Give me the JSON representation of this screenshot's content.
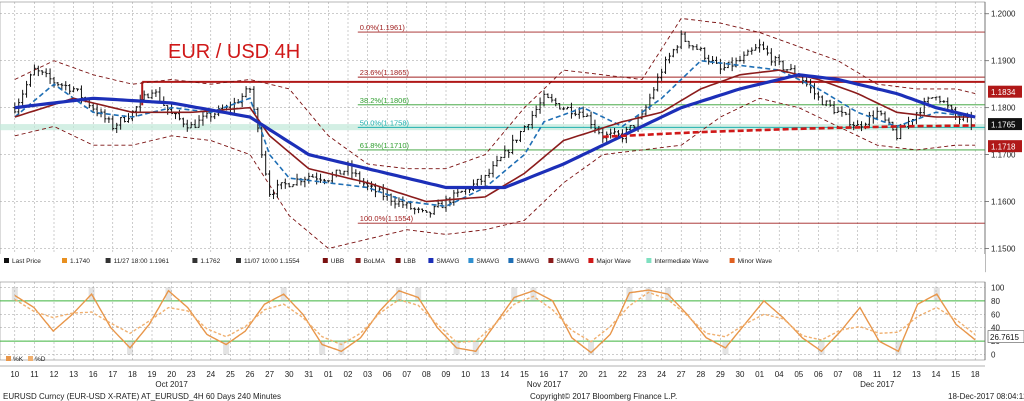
{
  "colors": {
    "bg": "#ffffff",
    "grid": "#9a9a9a",
    "candle": "#111111",
    "smavg_fast": "#1f6fb5",
    "smavg_mid": "#8b1c1c",
    "smavg_slow": "#1c2fb8",
    "bollinger": "#7a1010",
    "fib": "#a02020",
    "resistance": "#b01818",
    "support_band": "#c0e8d8",
    "major_wave": "#d01818",
    "stoch_k": "#e8964a",
    "stoch_d": "#f0b070",
    "stoch_gray": "#b0b0b0",
    "oscillator_line": "#3fb53f"
  },
  "chart_data": [
    {
      "type": "candlestick",
      "title": "EUR / USD 4H",
      "title_color": "#d01818",
      "ylim": [
        1.145,
        1.2025
      ],
      "y_ticks": [
        "1.2000",
        "1.1900",
        "1.1800",
        "1.1700",
        "1.1600",
        "1.1500"
      ],
      "y_tick_values": [
        1.2,
        1.19,
        1.18,
        1.17,
        1.16,
        1.15
      ],
      "x_day_labels": [
        "10",
        "11",
        "12",
        "13",
        "16",
        "17",
        "18",
        "19",
        "20",
        "23",
        "24",
        "25",
        "26",
        "27",
        "30",
        "31",
        "01",
        "02",
        "03",
        "06",
        "07",
        "08",
        "09",
        "10",
        "13",
        "14",
        "15",
        "16",
        "17",
        "20",
        "21",
        "22",
        "23",
        "24",
        "27",
        "28",
        "29",
        "30",
        "01",
        "04",
        "05",
        "06",
        "07",
        "08",
        "11",
        "12",
        "13",
        "14",
        "15",
        "18"
      ],
      "x_month_labels": [
        {
          "label": "Oct 2017",
          "at_day_index": 8
        },
        {
          "label": "Nov 2017",
          "at_day_index": 27
        },
        {
          "label": "Dec 2017",
          "at_day_index": 44
        }
      ],
      "fibonacci": [
        {
          "label": "0.0%(1.1961)",
          "value": 1.1961
        },
        {
          "label": "23.6%(1.1865)",
          "value": 1.1865
        },
        {
          "label": "38.2%(1.1806)",
          "value": 1.1806
        },
        {
          "label": "50.0%(1.1758)",
          "value": 1.1758
        },
        {
          "label": "61.8%(1.1710)",
          "value": 1.171
        },
        {
          "label": "100.0%(1.1554)",
          "value": 1.1554
        }
      ],
      "resistance_level": 1.1855,
      "price_tags": [
        {
          "label": "1.1834",
          "value": 1.1834,
          "bg": "#b01818",
          "fg": "#ffffff"
        },
        {
          "label": "1.1765",
          "value": 1.1765,
          "bg": "#111111",
          "fg": "#ffffff"
        },
        {
          "label": "1.1718",
          "value": 1.1718,
          "bg": "#b01818",
          "fg": "#ffffff"
        }
      ],
      "close_anchors": [
        [
          0,
          1.18
        ],
        [
          1,
          1.188
        ],
        [
          2,
          1.1855
        ],
        [
          3,
          1.184
        ],
        [
          4,
          1.18
        ],
        [
          5,
          1.176
        ],
        [
          6,
          1.179
        ],
        [
          7,
          1.184
        ],
        [
          8,
          1.1785
        ],
        [
          9,
          1.176
        ],
        [
          10,
          1.1785
        ],
        [
          11,
          1.18
        ],
        [
          12,
          1.184
        ],
        [
          13,
          1.162
        ],
        [
          14,
          1.164
        ],
        [
          15,
          1.1655
        ],
        [
          16,
          1.165
        ],
        [
          17,
          1.167
        ],
        [
          18,
          1.163
        ],
        [
          19,
          1.161
        ],
        [
          20,
          1.159
        ],
        [
          21,
          1.157
        ],
        [
          22,
          1.16
        ],
        [
          23,
          1.1625
        ],
        [
          24,
          1.165
        ],
        [
          25,
          1.17
        ],
        [
          26,
          1.176
        ],
        [
          27,
          1.182
        ],
        [
          28,
          1.18
        ],
        [
          29,
          1.179
        ],
        [
          30,
          1.174
        ],
        [
          31,
          1.174
        ],
        [
          32,
          1.178
        ],
        [
          33,
          1.188
        ],
        [
          34,
          1.195
        ],
        [
          35,
          1.192
        ],
        [
          36,
          1.188
        ],
        [
          37,
          1.19
        ],
        [
          38,
          1.193
        ],
        [
          39,
          1.189
        ],
        [
          40,
          1.187
        ],
        [
          41,
          1.182
        ],
        [
          42,
          1.179
        ],
        [
          43,
          1.176
        ],
        [
          44,
          1.179
        ],
        [
          45,
          1.174
        ],
        [
          46,
          1.179
        ],
        [
          47,
          1.183
        ],
        [
          48,
          1.178
        ],
        [
          49,
          1.1765
        ]
      ],
      "ma_fast": [
        [
          0,
          1.178
        ],
        [
          2,
          1.185
        ],
        [
          4,
          1.179
        ],
        [
          6,
          1.178
        ],
        [
          8,
          1.18
        ],
        [
          10,
          1.179
        ],
        [
          12,
          1.182
        ],
        [
          13,
          1.17
        ],
        [
          14,
          1.165
        ],
        [
          16,
          1.164
        ],
        [
          18,
          1.163
        ],
        [
          20,
          1.16
        ],
        [
          22,
          1.159
        ],
        [
          24,
          1.163
        ],
        [
          26,
          1.17
        ],
        [
          27,
          1.177
        ],
        [
          29,
          1.18
        ],
        [
          31,
          1.176
        ],
        [
          33,
          1.182
        ],
        [
          35,
          1.19
        ],
        [
          37,
          1.189
        ],
        [
          39,
          1.188
        ],
        [
          41,
          1.184
        ],
        [
          43,
          1.179
        ],
        [
          45,
          1.176
        ],
        [
          47,
          1.179
        ],
        [
          49,
          1.178
        ]
      ],
      "ma_mid": [
        [
          0,
          1.178
        ],
        [
          3,
          1.182
        ],
        [
          6,
          1.179
        ],
        [
          9,
          1.179
        ],
        [
          12,
          1.18
        ],
        [
          13,
          1.174
        ],
        [
          15,
          1.167
        ],
        [
          18,
          1.164
        ],
        [
          21,
          1.16
        ],
        [
          24,
          1.161
        ],
        [
          26,
          1.166
        ],
        [
          28,
          1.173
        ],
        [
          31,
          1.177
        ],
        [
          33,
          1.179
        ],
        [
          35,
          1.184
        ],
        [
          37,
          1.187
        ],
        [
          39,
          1.188
        ],
        [
          41,
          1.186
        ],
        [
          43,
          1.183
        ],
        [
          45,
          1.179
        ],
        [
          47,
          1.178
        ],
        [
          49,
          1.178
        ]
      ],
      "ma_slow": [
        [
          0,
          1.18
        ],
        [
          4,
          1.182
        ],
        [
          8,
          1.181
        ],
        [
          12,
          1.178
        ],
        [
          15,
          1.17
        ],
        [
          19,
          1.166
        ],
        [
          22,
          1.163
        ],
        [
          25,
          1.163
        ],
        [
          28,
          1.168
        ],
        [
          31,
          1.174
        ],
        [
          34,
          1.18
        ],
        [
          37,
          1.184
        ],
        [
          40,
          1.187
        ],
        [
          42,
          1.186
        ],
        [
          45,
          1.183
        ],
        [
          47,
          1.18
        ],
        [
          49,
          1.178
        ]
      ],
      "major_wave": [
        [
          30,
          1.1738
        ],
        [
          35,
          1.1748
        ],
        [
          40,
          1.1755
        ],
        [
          45,
          1.176
        ],
        [
          49,
          1.1762
        ]
      ],
      "bollinger_upper": [
        [
          0,
          1.186
        ],
        [
          2,
          1.19
        ],
        [
          4,
          1.187
        ],
        [
          6,
          1.185
        ],
        [
          8,
          1.186
        ],
        [
          10,
          1.185
        ],
        [
          12,
          1.186
        ],
        [
          14,
          1.184
        ],
        [
          16,
          1.174
        ],
        [
          18,
          1.168
        ],
        [
          20,
          1.167
        ],
        [
          22,
          1.167
        ],
        [
          24,
          1.17
        ],
        [
          26,
          1.18
        ],
        [
          28,
          1.188
        ],
        [
          30,
          1.187
        ],
        [
          32,
          1.186
        ],
        [
          34,
          1.199
        ],
        [
          36,
          1.198
        ],
        [
          38,
          1.196
        ],
        [
          40,
          1.193
        ],
        [
          42,
          1.19
        ],
        [
          44,
          1.185
        ],
        [
          46,
          1.184
        ],
        [
          48,
          1.184
        ],
        [
          49,
          1.183
        ]
      ],
      "bollinger_lower": [
        [
          0,
          1.174
        ],
        [
          2,
          1.176
        ],
        [
          4,
          1.172
        ],
        [
          6,
          1.172
        ],
        [
          8,
          1.174
        ],
        [
          10,
          1.173
        ],
        [
          12,
          1.17
        ],
        [
          14,
          1.157
        ],
        [
          16,
          1.15
        ],
        [
          18,
          1.152
        ],
        [
          20,
          1.154
        ],
        [
          22,
          1.153
        ],
        [
          24,
          1.154
        ],
        [
          26,
          1.156
        ],
        [
          28,
          1.164
        ],
        [
          30,
          1.17
        ],
        [
          32,
          1.171
        ],
        [
          34,
          1.172
        ],
        [
          36,
          1.178
        ],
        [
          38,
          1.182
        ],
        [
          40,
          1.18
        ],
        [
          42,
          1.176
        ],
        [
          44,
          1.172
        ],
        [
          46,
          1.171
        ],
        [
          48,
          1.172
        ],
        [
          49,
          1.172
        ]
      ],
      "legend": [
        {
          "symbol": "ohlc",
          "color": "#111111",
          "text": "Last Price"
        },
        {
          "symbol": "square",
          "color": "#e89020",
          "text": "1.1740"
        },
        {
          "symbol": "tick",
          "color": "#333333",
          "text": "11/27 18:00 1.1961"
        },
        {
          "symbol": "plus",
          "color": "#333333",
          "text": "1.1762"
        },
        {
          "symbol": "tick",
          "color": "#333333",
          "text": "11/07 10:00 1.1554"
        },
        {
          "symbol": "bracket",
          "color": "#7a1010",
          "text": "UBB"
        },
        {
          "symbol": "square",
          "color": "#8b1c1c",
          "text": "BoLMA"
        },
        {
          "symbol": "bracket",
          "color": "#7a1010",
          "text": "LBB"
        },
        {
          "symbol": "square",
          "color": "#1c2fb8",
          "text": "SMAVG"
        },
        {
          "symbol": "square",
          "color": "#3090d0",
          "text": "SMAVG"
        },
        {
          "symbol": "wave",
          "color": "#1f6fb5",
          "text": "SMAVG"
        },
        {
          "symbol": "wave",
          "color": "#8b1c1c",
          "text": "SMAVG"
        },
        {
          "symbol": "square",
          "color": "#d01818",
          "text": "Major Wave"
        },
        {
          "symbol": "square",
          "color": "#7fe0c0",
          "text": "Intermediate Wave"
        },
        {
          "symbol": "square",
          "color": "#e06020",
          "text": "Minor Wave"
        }
      ]
    },
    {
      "type": "line",
      "name": "Stochastic",
      "ylim": [
        -8,
        108
      ],
      "y_ticks": [
        "100",
        "80",
        "60",
        "40",
        "20",
        "0"
      ],
      "y_tick_values": [
        100,
        80,
        60,
        40,
        20,
        0
      ],
      "levels": [
        80,
        20
      ],
      "last_value_label": "26.7615",
      "last_value": 26.7615,
      "legend": [
        {
          "color": "#e8964a",
          "text": "%K"
        },
        {
          "color": "#f0b070",
          "text": "%D"
        }
      ],
      "k_series": [
        [
          0,
          88
        ],
        [
          1,
          70
        ],
        [
          2,
          35
        ],
        [
          3,
          60
        ],
        [
          4,
          90
        ],
        [
          5,
          40
        ],
        [
          6,
          10
        ],
        [
          7,
          45
        ],
        [
          8,
          95
        ],
        [
          9,
          70
        ],
        [
          10,
          30
        ],
        [
          11,
          15
        ],
        [
          12,
          35
        ],
        [
          13,
          75
        ],
        [
          14,
          90
        ],
        [
          15,
          60
        ],
        [
          16,
          15
        ],
        [
          17,
          5
        ],
        [
          18,
          25
        ],
        [
          19,
          65
        ],
        [
          20,
          95
        ],
        [
          21,
          85
        ],
        [
          22,
          40
        ],
        [
          23,
          10
        ],
        [
          24,
          5
        ],
        [
          25,
          45
        ],
        [
          26,
          85
        ],
        [
          27,
          95
        ],
        [
          28,
          80
        ],
        [
          29,
          25
        ],
        [
          30,
          3
        ],
        [
          31,
          30
        ],
        [
          32,
          92
        ],
        [
          33,
          96
        ],
        [
          34,
          90
        ],
        [
          35,
          60
        ],
        [
          36,
          25
        ],
        [
          37,
          10
        ],
        [
          38,
          45
        ],
        [
          39,
          80
        ],
        [
          40,
          55
        ],
        [
          41,
          25
        ],
        [
          42,
          5
        ],
        [
          43,
          35
        ],
        [
          44,
          70
        ],
        [
          45,
          20
        ],
        [
          46,
          5
        ],
        [
          47,
          75
        ],
        [
          48,
          90
        ],
        [
          49,
          45
        ],
        [
          50,
          22
        ]
      ],
      "k_domain": [
        0,
        50
      ]
    }
  ],
  "footer": {
    "left": "EURUSD Curncy (EUR-USD X-RATE) AT_EURUSD_4H 60 Days 240 Minutes",
    "center": "Copyright© 2017 Bloomberg Finance L.P.",
    "right": "18-Dec-2017 08:04:12"
  }
}
